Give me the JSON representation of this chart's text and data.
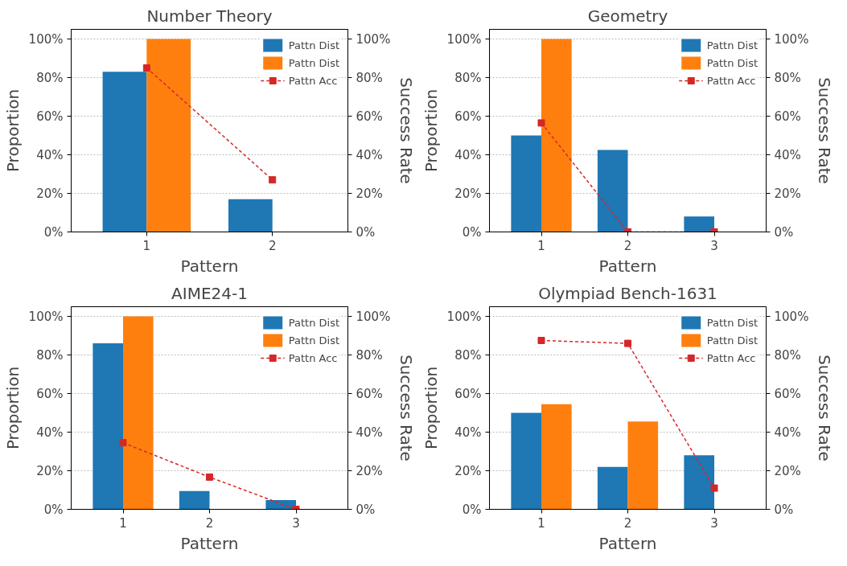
{
  "chart_data": [
    {
      "type": "bar",
      "title": "Number Theory",
      "xlabel": "Pattern",
      "ylabel": "Proportion",
      "y2label": "Success Rate",
      "categories": [
        "1",
        "2"
      ],
      "ylim": [
        0,
        105
      ],
      "yticks": [
        {
          "value": 0,
          "label": "0%"
        },
        {
          "value": 20,
          "label": "20%"
        },
        {
          "value": 40,
          "label": "40%"
        },
        {
          "value": 60,
          "label": "60%"
        },
        {
          "value": 80,
          "label": "80%"
        },
        {
          "value": 100,
          "label": "100%"
        }
      ],
      "y2lim": [
        0,
        105
      ],
      "y2ticks": [
        {
          "value": 0,
          "label": "0%"
        },
        {
          "value": 20,
          "label": "20%"
        },
        {
          "value": 40,
          "label": "40%"
        },
        {
          "value": 60,
          "label": "60%"
        },
        {
          "value": 80,
          "label": "80%"
        },
        {
          "value": 100,
          "label": "100%"
        }
      ],
      "grid": "y",
      "legend": "top right",
      "series": [
        {
          "name": "Pattn Dist",
          "color": "#1f77b4",
          "values": [
            83,
            17
          ]
        },
        {
          "name": "Pattn Dist",
          "color": "#ff7f0e",
          "values": [
            100,
            0
          ]
        },
        {
          "name": "Pattn Acc",
          "type": "line",
          "axis": "y2",
          "color": "#d62728",
          "marker": "square",
          "line_style": "dashed",
          "values": [
            85,
            27
          ]
        }
      ]
    },
    {
      "type": "bar",
      "title": "Geometry",
      "xlabel": "Pattern",
      "ylabel": "Proportion",
      "y2label": "Success Rate",
      "categories": [
        "1",
        "2",
        "3"
      ],
      "ylim": [
        0,
        105
      ],
      "yticks": [
        {
          "value": 0,
          "label": "0%"
        },
        {
          "value": 20,
          "label": "20%"
        },
        {
          "value": 40,
          "label": "40%"
        },
        {
          "value": 60,
          "label": "60%"
        },
        {
          "value": 80,
          "label": "80%"
        },
        {
          "value": 100,
          "label": "100%"
        }
      ],
      "y2lim": [
        0,
        105
      ],
      "y2ticks": [
        {
          "value": 0,
          "label": "0%"
        },
        {
          "value": 20,
          "label": "20%"
        },
        {
          "value": 40,
          "label": "40%"
        },
        {
          "value": 60,
          "label": "60%"
        },
        {
          "value": 80,
          "label": "80%"
        },
        {
          "value": 100,
          "label": "100%"
        }
      ],
      "grid": "y",
      "legend": "top right",
      "series": [
        {
          "name": "Pattn Dist",
          "color": "#1f77b4",
          "values": [
            50,
            42.5,
            8
          ]
        },
        {
          "name": "Pattn Dist",
          "color": "#ff7f0e",
          "values": [
            100,
            0,
            0
          ]
        },
        {
          "name": "Pattn Acc",
          "type": "line",
          "axis": "y2",
          "color": "#d62728",
          "marker": "square",
          "line_style": "dashed",
          "values": [
            56.5,
            0,
            0
          ]
        }
      ]
    },
    {
      "type": "bar",
      "title": "AIME24-1",
      "xlabel": "Pattern",
      "ylabel": "Proportion",
      "y2label": "Success Rate",
      "categories": [
        "1",
        "2",
        "3"
      ],
      "ylim": [
        0,
        105
      ],
      "yticks": [
        {
          "value": 0,
          "label": "0%"
        },
        {
          "value": 20,
          "label": "20%"
        },
        {
          "value": 40,
          "label": "40%"
        },
        {
          "value": 60,
          "label": "60%"
        },
        {
          "value": 80,
          "label": "80%"
        },
        {
          "value": 100,
          "label": "100%"
        }
      ],
      "y2lim": [
        0,
        105
      ],
      "y2ticks": [
        {
          "value": 0,
          "label": "0%"
        },
        {
          "value": 20,
          "label": "20%"
        },
        {
          "value": 40,
          "label": "40%"
        },
        {
          "value": 60,
          "label": "60%"
        },
        {
          "value": 80,
          "label": "80%"
        },
        {
          "value": 100,
          "label": "100%"
        }
      ],
      "grid": "y",
      "legend": "top right",
      "series": [
        {
          "name": "Pattn Dist",
          "color": "#1f77b4",
          "values": [
            86,
            9.5,
            4.8
          ]
        },
        {
          "name": "Pattn Dist",
          "color": "#ff7f0e",
          "values": [
            100,
            0,
            0
          ]
        },
        {
          "name": "Pattn Acc",
          "type": "line",
          "axis": "y2",
          "color": "#d62728",
          "marker": "square",
          "line_style": "dashed",
          "values": [
            34.5,
            16.7,
            0
          ]
        }
      ]
    },
    {
      "type": "bar",
      "title": "Olympiad Bench-1631",
      "xlabel": "Pattern",
      "ylabel": "Proportion",
      "y2label": "Success Rate",
      "categories": [
        "1",
        "2",
        "3"
      ],
      "ylim": [
        0,
        105
      ],
      "yticks": [
        {
          "value": 0,
          "label": "0%"
        },
        {
          "value": 20,
          "label": "20%"
        },
        {
          "value": 40,
          "label": "40%"
        },
        {
          "value": 60,
          "label": "60%"
        },
        {
          "value": 80,
          "label": "80%"
        },
        {
          "value": 100,
          "label": "100%"
        }
      ],
      "y2lim": [
        0,
        105
      ],
      "y2ticks": [
        {
          "value": 0,
          "label": "0%"
        },
        {
          "value": 20,
          "label": "20%"
        },
        {
          "value": 40,
          "label": "40%"
        },
        {
          "value": 60,
          "label": "60%"
        },
        {
          "value": 80,
          "label": "80%"
        },
        {
          "value": 100,
          "label": "100%"
        }
      ],
      "grid": "y",
      "legend": "top right",
      "series": [
        {
          "name": "Pattn Dist",
          "color": "#1f77b4",
          "values": [
            50,
            22,
            28
          ]
        },
        {
          "name": "Pattn Dist",
          "color": "#ff7f0e",
          "values": [
            54.5,
            45.5,
            0
          ]
        },
        {
          "name": "Pattn Acc",
          "type": "line",
          "axis": "y2",
          "color": "#d62728",
          "marker": "square",
          "line_style": "dashed",
          "values": [
            87.5,
            86,
            11
          ]
        }
      ]
    }
  ]
}
